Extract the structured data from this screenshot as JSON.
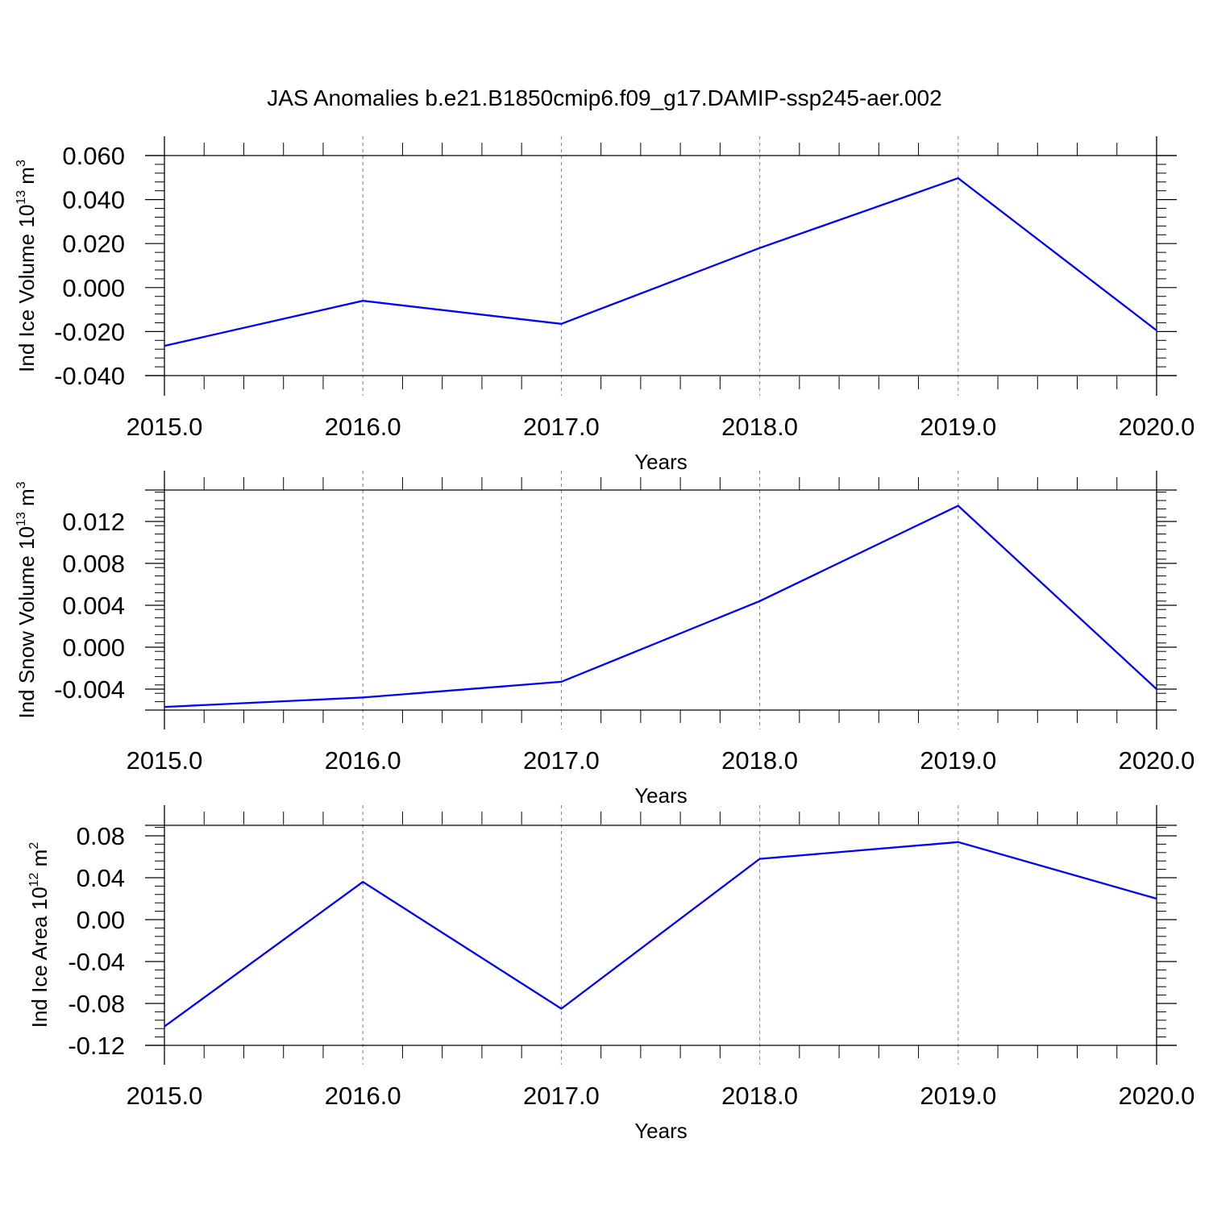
{
  "figure": {
    "title": "JAS Anomalies b.e21.B1850cmip6.f09_g17.DAMIP-ssp245-aer.002",
    "line_color": "#0000ff",
    "grid_color": "#808080"
  },
  "chart_data": [
    {
      "type": "line",
      "title": "",
      "xlabel": "Years",
      "ylabel": "Ind Ice Volume 10",
      "ylabel_exponent": "13",
      "ylabel_unit": " m",
      "ylabel_unit_exponent": "3",
      "x": [
        2015,
        2016,
        2017,
        2018,
        2019,
        2020
      ],
      "x_tick_labels": [
        "2015.0",
        "2016.0",
        "2017.0",
        "2018.0",
        "2019.0",
        "2020.0"
      ],
      "xlim": [
        2015,
        2020.1
      ],
      "y_ticks": [
        -0.04,
        -0.02,
        0.0,
        0.02,
        0.04,
        0.06
      ],
      "y_tick_labels": [
        "-0.040",
        "-0.020",
        "0.000",
        "0.020",
        "0.040",
        "0.060"
      ],
      "ylim": [
        -0.04,
        0.06
      ],
      "grid": "vertical dashed at major x ticks",
      "series": [
        {
          "values": [
            -0.0265,
            -0.006,
            -0.0165,
            0.018,
            0.0497,
            -0.0195
          ]
        }
      ]
    },
    {
      "type": "line",
      "title": "",
      "xlabel": "Years",
      "ylabel": "Ind Snow Volume 10",
      "ylabel_exponent": "13",
      "ylabel_unit": " m",
      "ylabel_unit_exponent": "3",
      "x": [
        2015,
        2016,
        2017,
        2018,
        2019,
        2020
      ],
      "x_tick_labels": [
        "2015.0",
        "2016.0",
        "2017.0",
        "2018.0",
        "2019.0",
        "2020.0"
      ],
      "xlim": [
        2015,
        2020.1
      ],
      "y_ticks": [
        -0.004,
        0.0,
        0.004,
        0.008,
        0.012
      ],
      "y_tick_labels": [
        "-0.004",
        "0.000",
        "0.004",
        "0.008",
        "0.012"
      ],
      "ylim": [
        -0.006,
        0.015
      ],
      "grid": "vertical dashed at major x ticks",
      "series": [
        {
          "values": [
            -0.0057,
            -0.0048,
            -0.0033,
            0.0044,
            0.0135,
            -0.004
          ]
        }
      ]
    },
    {
      "type": "line",
      "title": "",
      "xlabel": "Years",
      "ylabel": "Ind Ice Area 10",
      "ylabel_exponent": "12",
      "ylabel_unit": " m",
      "ylabel_unit_exponent": "2",
      "x": [
        2015,
        2016,
        2017,
        2018,
        2019,
        2020
      ],
      "x_tick_labels": [
        "2015.0",
        "2016.0",
        "2017.0",
        "2018.0",
        "2019.0",
        "2020.0"
      ],
      "xlim": [
        2015,
        2020.1
      ],
      "y_ticks": [
        -0.12,
        -0.08,
        -0.04,
        0.0,
        0.04,
        0.08
      ],
      "y_tick_labels": [
        "-0.12",
        "-0.08",
        "-0.04",
        "0.00",
        "0.04",
        "0.08"
      ],
      "ylim": [
        -0.12,
        0.09
      ],
      "grid": "vertical dashed at major x ticks",
      "series": [
        {
          "values": [
            -0.102,
            0.036,
            -0.085,
            0.058,
            0.074,
            0.02
          ]
        }
      ]
    }
  ]
}
